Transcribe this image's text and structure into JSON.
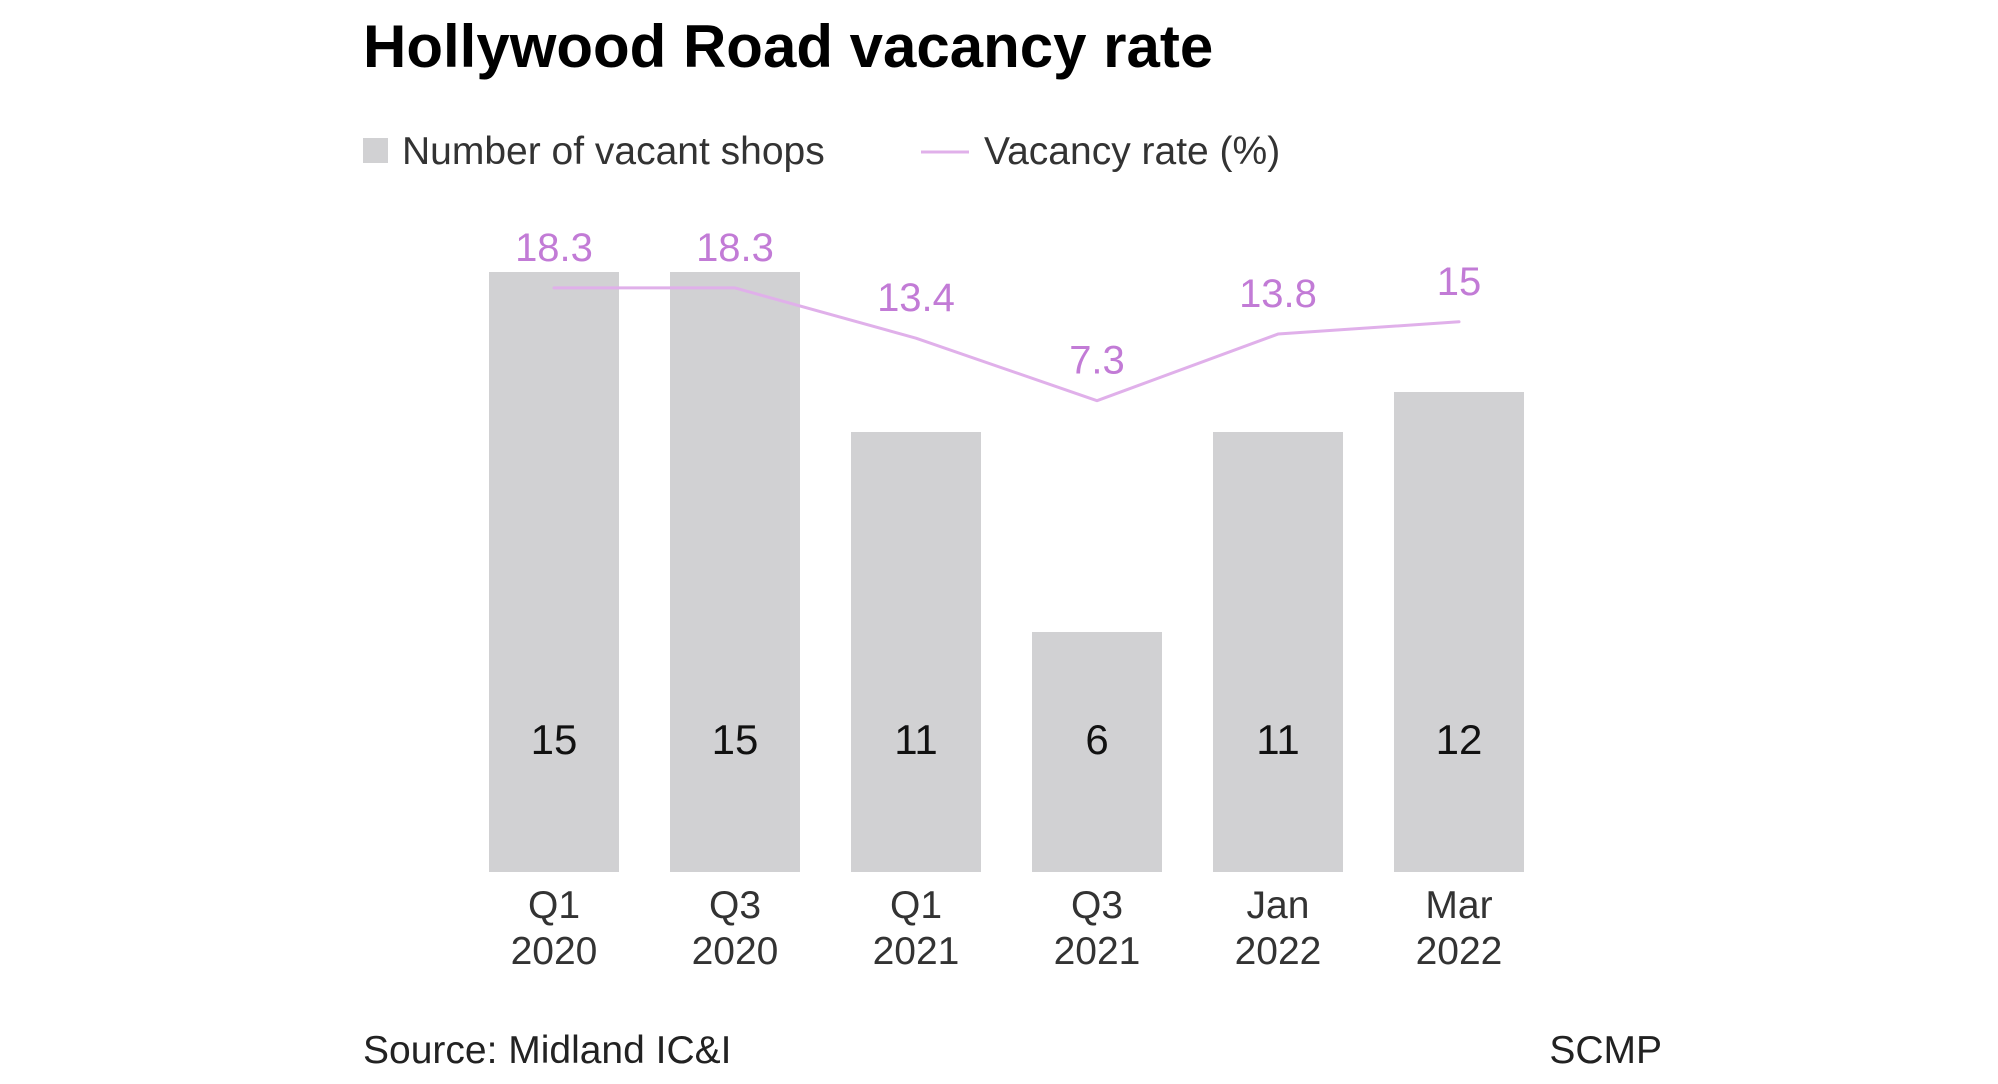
{
  "chart_data": {
    "type": "bar",
    "title": "Hollywood Road vacancy rate",
    "categories": [
      [
        "Q1",
        "2020"
      ],
      [
        "Q3",
        "2020"
      ],
      [
        "Q1",
        "2021"
      ],
      [
        "Q3",
        "2021"
      ],
      [
        "Jan",
        "2022"
      ],
      [
        "Mar",
        "2022"
      ]
    ],
    "series": [
      {
        "name": "Number of vacant shops",
        "type": "bar",
        "values": [
          15,
          15,
          11,
          6,
          11,
          12
        ],
        "labels": [
          "15",
          "15",
          "11",
          "6",
          "11",
          "12"
        ],
        "color": "#d1d1d3"
      },
      {
        "name": "Vacancy rate (%)",
        "type": "line",
        "values": [
          18.3,
          18.3,
          13.4,
          7.3,
          13.8,
          15
        ],
        "labels": [
          "18.3",
          "18.3",
          "13.4",
          "7.3",
          "13.8",
          "15"
        ],
        "color": "#e0b0ea",
        "label_color": "#c27bd6"
      }
    ],
    "legend_position": "top-left",
    "grid": false
  },
  "footer": {
    "source": "Source: Midland IC&I",
    "credit": "SCMP"
  }
}
